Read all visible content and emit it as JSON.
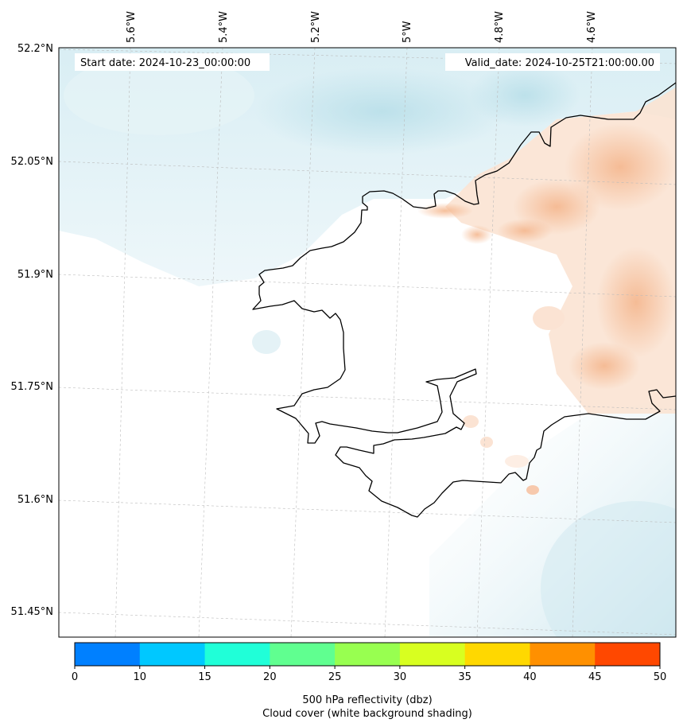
{
  "map": {
    "start_date_label": "Start date: 2024-10-23_00:00:00",
    "valid_date_label": "Valid_date: 2024-10-25T21:00:00.00",
    "lon_ticks": [
      "5.6°W",
      "5.4°W",
      "5.2°W",
      "5°W",
      "4.8°W",
      "4.6°W"
    ],
    "lat_ticks": [
      "52.2°N",
      "52.05°N",
      "51.9°N",
      "51.75°N",
      "51.6°N",
      "51.45°N"
    ],
    "coastline_color": "#000000",
    "cloud_color": "#cfe8ef",
    "warm_color": "#f7c7a3"
  },
  "colorbar": {
    "ticks": [
      "0",
      "10",
      "15",
      "20",
      "25",
      "30",
      "35",
      "40",
      "45",
      "50"
    ],
    "colors": [
      "#0080ff",
      "#00c8ff",
      "#20ffd8",
      "#60ff90",
      "#98ff50",
      "#d8ff20",
      "#ffd800",
      "#ff9000",
      "#ff4800"
    ],
    "label_line1": "500 hPa reflectivity (dbz)",
    "label_line2": "Cloud cover (white background shading)"
  }
}
